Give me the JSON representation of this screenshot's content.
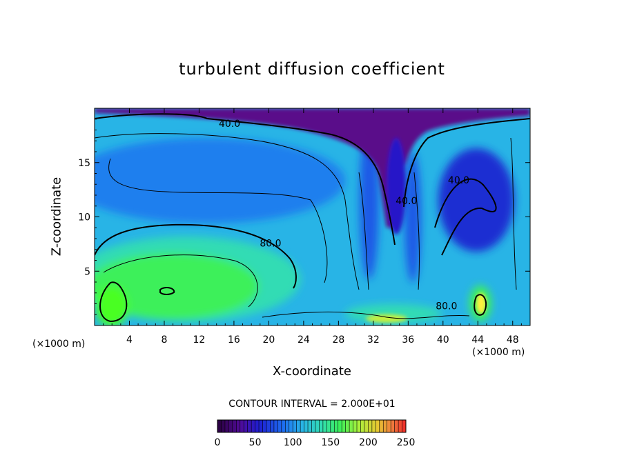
{
  "chart_data": {
    "type": "heatmap",
    "title": "turbulent diffusion coefficient",
    "xlabel": "X-coordinate",
    "ylabel": "Z-coordinate",
    "x_unit": "(×1000 m)",
    "xlim": [
      0,
      50
    ],
    "ylim": [
      0,
      20
    ],
    "x_ticks": [
      4,
      8,
      12,
      16,
      20,
      24,
      28,
      32,
      36,
      40,
      44,
      48
    ],
    "y_ticks": [
      5,
      10,
      15
    ],
    "contour_interval_label": "CONTOUR INTERVAL = 2.000E+01",
    "contour_labels": [
      {
        "text": "40.0",
        "x": 15.5,
        "z": 18.6
      },
      {
        "text": "80.0",
        "x": 20.2,
        "z": 7.6
      },
      {
        "text": "40.0",
        "x": 35.8,
        "z": 11.5
      },
      {
        "text": "40.0",
        "x": 41.8,
        "z": 13.4
      },
      {
        "text": "80.0",
        "x": 40.4,
        "z": 1.8
      }
    ],
    "colorbar": {
      "min": 0,
      "max": 250,
      "tick_values": [
        0,
        50,
        100,
        150,
        200,
        250
      ],
      "tick_labels": [
        "0",
        "50",
        "100",
        "150",
        "200",
        "250"
      ]
    },
    "colors": {
      "very_low": "#5a0a8a",
      "low": "#1e1ed2",
      "mid_low": "#1e6ef0",
      "mid": "#28b4e6",
      "mid_high": "#32dcb4",
      "high": "#3cf05a",
      "peak": "#fff03c"
    }
  }
}
